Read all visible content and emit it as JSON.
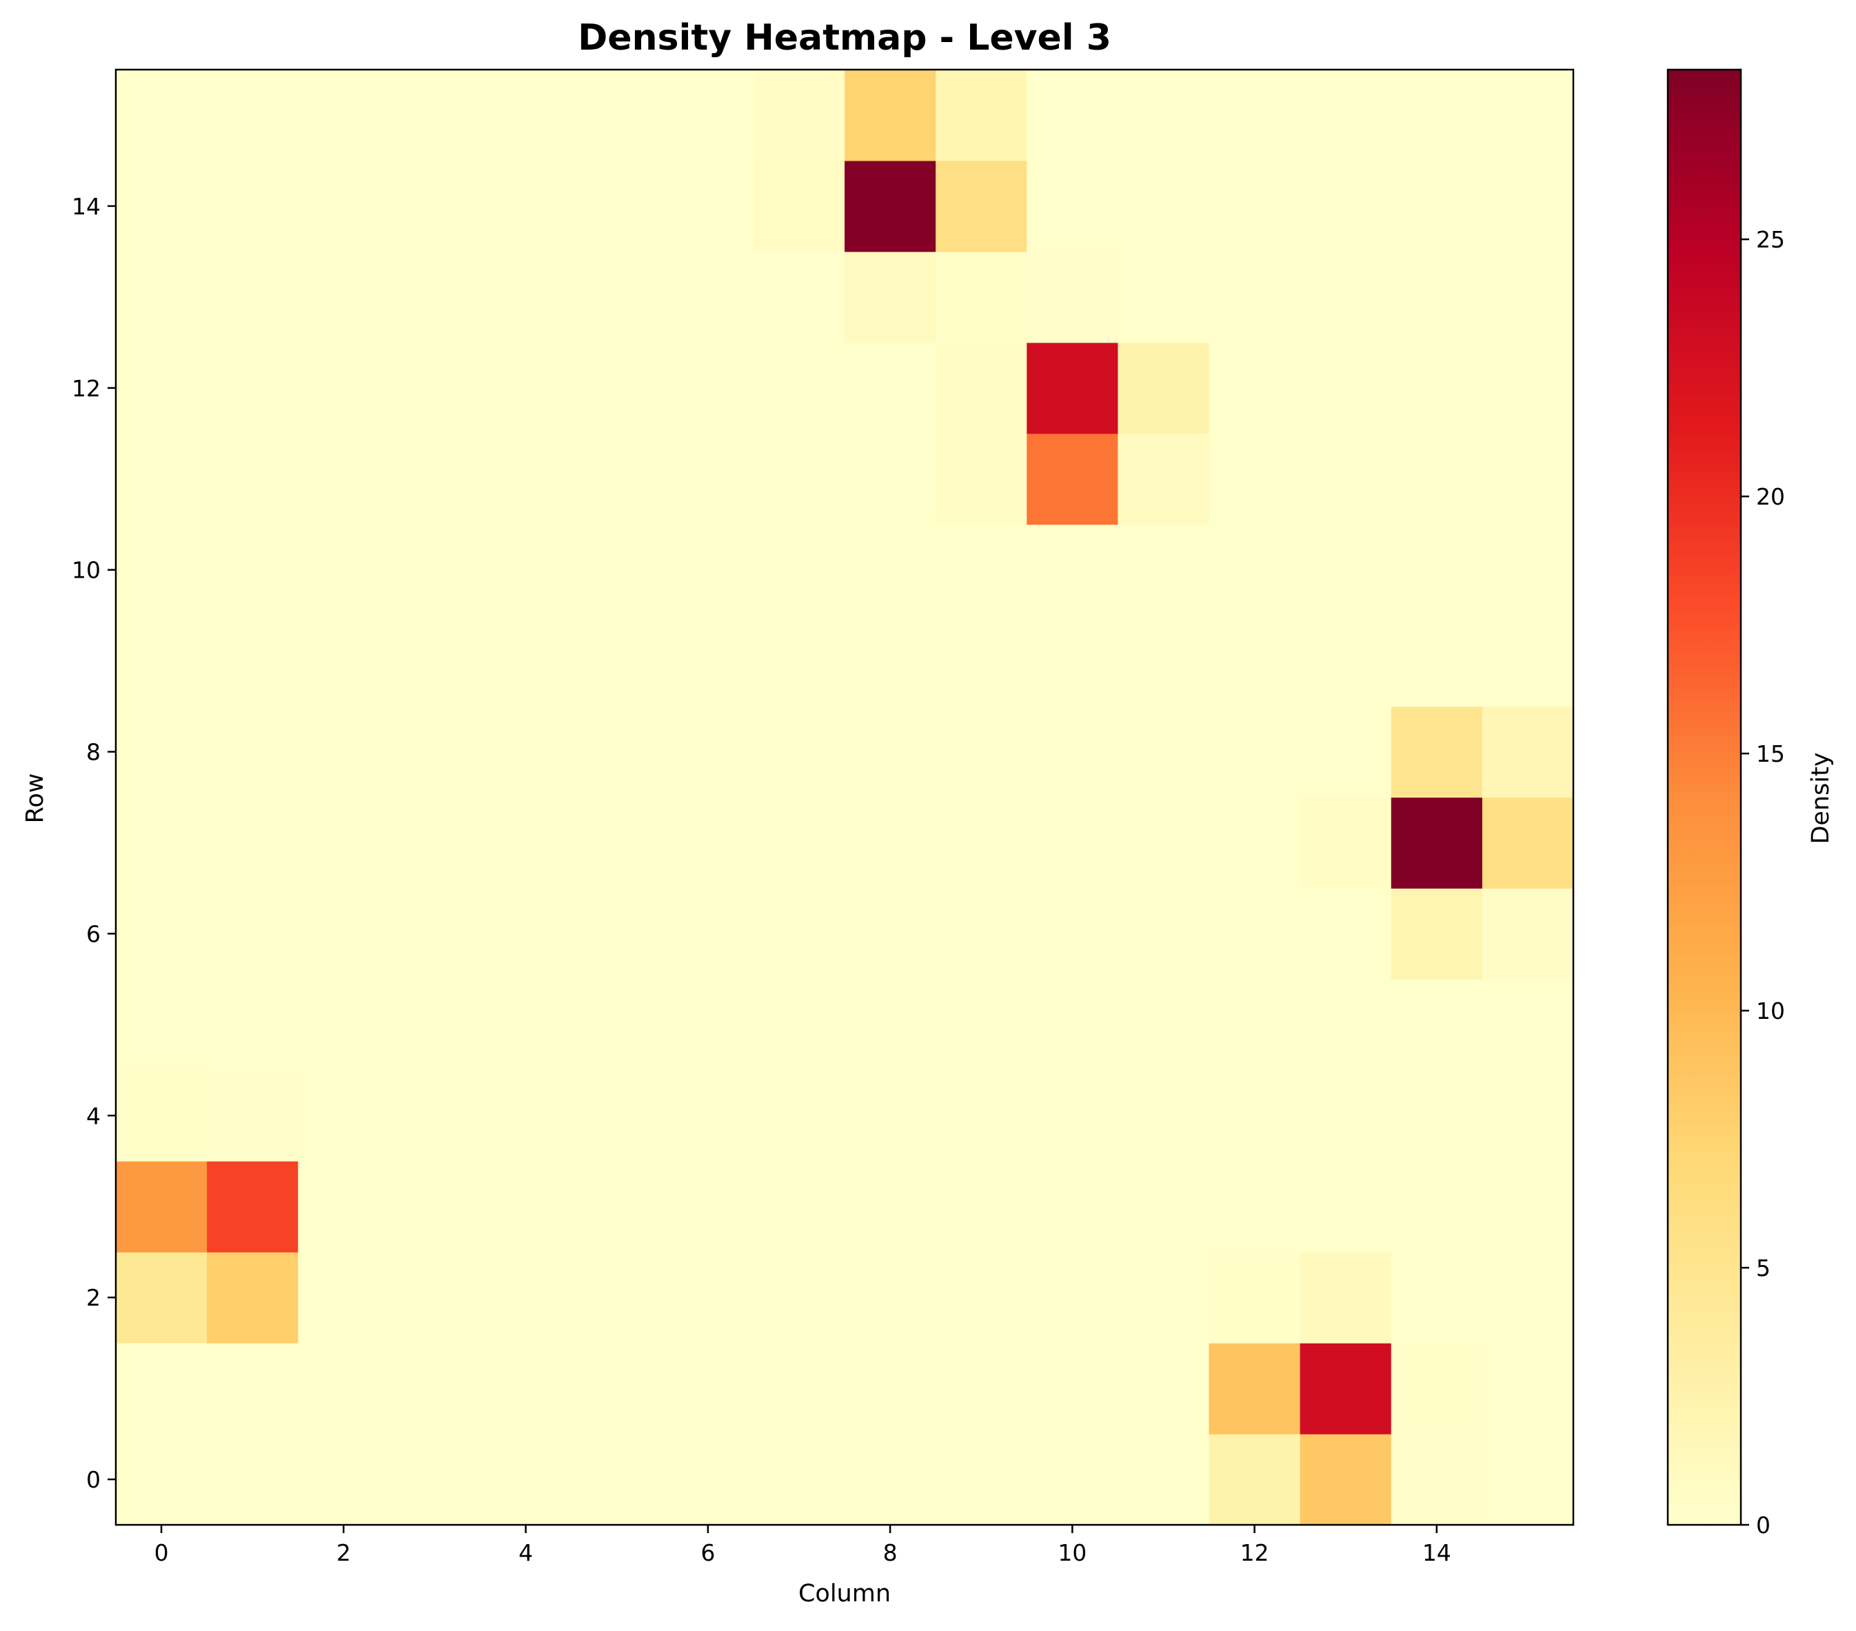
{
  "chart_data": {
    "type": "heatmap",
    "title": "Density Heatmap - Level 3",
    "xlabel": "Column",
    "ylabel": "Row",
    "colorbar_label": "Density",
    "colormap": "YlOrRd",
    "colormap_stops": [
      "#ffffcc",
      "#ffeda0",
      "#fed976",
      "#feb24c",
      "#fd8d3c",
      "#fc4e2a",
      "#e31a1c",
      "#bd0026",
      "#800026"
    ],
    "vmin": 0,
    "vmax": 28.3,
    "rows": 16,
    "cols": 16,
    "origin": "lower",
    "xticks": [
      0,
      2,
      4,
      6,
      8,
      10,
      12,
      14
    ],
    "yticks": [
      0,
      2,
      4,
      6,
      8,
      10,
      12,
      14
    ],
    "colorbar_ticks": [
      0,
      5,
      10,
      15,
      20,
      25
    ],
    "cells": [
      {
        "row": 0,
        "col": 12,
        "value": 2.5
      },
      {
        "row": 0,
        "col": 13,
        "value": 8.5
      },
      {
        "row": 0,
        "col": 14,
        "value": 0.2
      },
      {
        "row": 1,
        "col": 12,
        "value": 9.0
      },
      {
        "row": 1,
        "col": 13,
        "value": 23.0
      },
      {
        "row": 1,
        "col": 14,
        "value": 0.3
      },
      {
        "row": 2,
        "col": 0,
        "value": 4.5
      },
      {
        "row": 2,
        "col": 1,
        "value": 8.0
      },
      {
        "row": 2,
        "col": 12,
        "value": 0.3
      },
      {
        "row": 2,
        "col": 13,
        "value": 1.2
      },
      {
        "row": 3,
        "col": 0,
        "value": 13.0
      },
      {
        "row": 3,
        "col": 1,
        "value": 18.5
      },
      {
        "row": 4,
        "col": 0,
        "value": 0.3
      },
      {
        "row": 4,
        "col": 1,
        "value": 0.2
      },
      {
        "row": 6,
        "col": 14,
        "value": 2.0
      },
      {
        "row": 6,
        "col": 15,
        "value": 0.5
      },
      {
        "row": 7,
        "col": 13,
        "value": 0.5
      },
      {
        "row": 7,
        "col": 14,
        "value": 28.3
      },
      {
        "row": 7,
        "col": 15,
        "value": 6.0
      },
      {
        "row": 8,
        "col": 14,
        "value": 5.0
      },
      {
        "row": 8,
        "col": 15,
        "value": 1.8
      },
      {
        "row": 11,
        "col": 9,
        "value": 0.5
      },
      {
        "row": 11,
        "col": 10,
        "value": 15.5
      },
      {
        "row": 11,
        "col": 11,
        "value": 1.0
      },
      {
        "row": 12,
        "col": 9,
        "value": 0.6
      },
      {
        "row": 12,
        "col": 10,
        "value": 23.0
      },
      {
        "row": 12,
        "col": 11,
        "value": 2.5
      },
      {
        "row": 13,
        "col": 8,
        "value": 1.0
      },
      {
        "row": 13,
        "col": 9,
        "value": 0.3
      },
      {
        "row": 13,
        "col": 10,
        "value": 0.2
      },
      {
        "row": 14,
        "col": 7,
        "value": 0.8
      },
      {
        "row": 14,
        "col": 8,
        "value": 28.0
      },
      {
        "row": 14,
        "col": 9,
        "value": 6.0
      },
      {
        "row": 15,
        "col": 7,
        "value": 0.5
      },
      {
        "row": 15,
        "col": 8,
        "value": 7.5
      },
      {
        "row": 15,
        "col": 9,
        "value": 2.0
      }
    ]
  }
}
